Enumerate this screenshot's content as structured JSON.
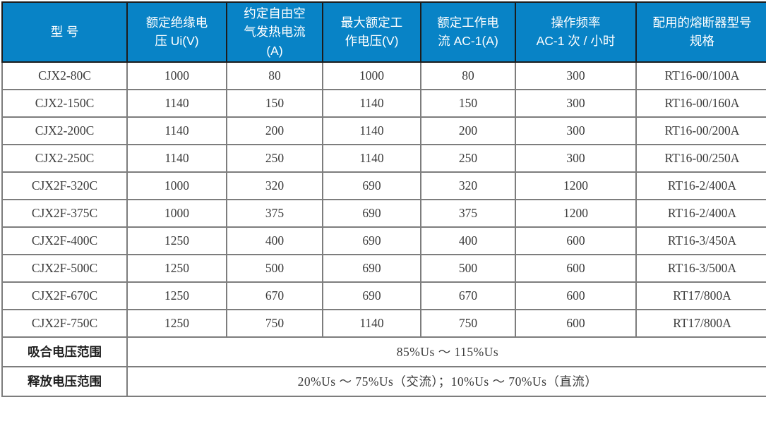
{
  "table": {
    "columns": [
      {
        "label": "型 号"
      },
      {
        "label": "额定绝缘电\n压 Ui(V)"
      },
      {
        "label": "约定自由空\n气发热电流\n(A)"
      },
      {
        "label": "最大额定工\n作电压(V)"
      },
      {
        "label": "额定工作电\n流 AC-1(A)"
      },
      {
        "label": "操作频率\nAC-1 次 / 小时"
      },
      {
        "label": "配用的熔断器型号\n规格"
      }
    ],
    "rows": [
      [
        "CJX2-80C",
        "1000",
        "80",
        "1000",
        "80",
        "300",
        "RT16-00/100A"
      ],
      [
        "CJX2-150C",
        "1140",
        "150",
        "1140",
        "150",
        "300",
        "RT16-00/160A"
      ],
      [
        "CJX2-200C",
        "1140",
        "200",
        "1140",
        "200",
        "300",
        "RT16-00/200A"
      ],
      [
        "CJX2-250C",
        "1140",
        "250",
        "1140",
        "250",
        "300",
        "RT16-00/250A"
      ],
      [
        "CJX2F-320C",
        "1000",
        "320",
        "690",
        "320",
        "1200",
        "RT16-2/400A"
      ],
      [
        "CJX2F-375C",
        "1000",
        "375",
        "690",
        "375",
        "1200",
        "RT16-2/400A"
      ],
      [
        "CJX2F-400C",
        "1250",
        "400",
        "690",
        "400",
        "600",
        "RT16-3/450A"
      ],
      [
        "CJX2F-500C",
        "1250",
        "500",
        "690",
        "500",
        "600",
        "RT16-3/500A"
      ],
      [
        "CJX2F-670C",
        "1250",
        "670",
        "690",
        "670",
        "600",
        "RT17/800A"
      ],
      [
        "CJX2F-750C",
        "1250",
        "750",
        "1140",
        "750",
        "600",
        "RT17/800A"
      ]
    ],
    "footer_rows": [
      {
        "label": "吸合电压范围",
        "value": "85%Us ～ 115%Us"
      },
      {
        "label": "释放电压范围",
        "value": "20%Us ～ 75%Us（交流）；10%Us ～ 70%Us（直流）"
      }
    ],
    "colors": {
      "header_bg": "#0883c6",
      "header_text": "#ffffff",
      "body_text": "#3b3b3b",
      "grid": "#7d7d7d",
      "outer_border": "#1c1c1c"
    }
  }
}
